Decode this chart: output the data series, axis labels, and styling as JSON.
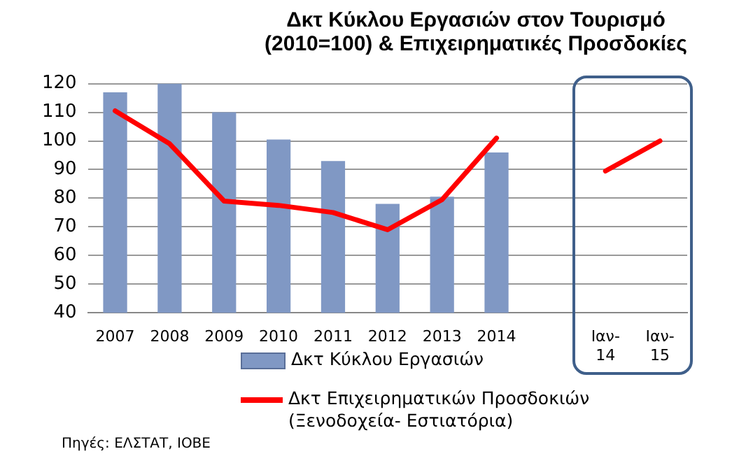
{
  "chart_data": {
    "type": "bar",
    "title": "Δκτ Κύκλου Εργασιών στον Τουρισμό\n(2010=100) & Επιχειρηματικές Προσδοκίες",
    "categories": [
      "2007",
      "2008",
      "2009",
      "2010",
      "2011",
      "2012",
      "2013",
      "2014",
      null,
      "Ιαν-14",
      "Ιαν-15"
    ],
    "series": [
      {
        "name": "Δκτ Κύκλου Εργασιών",
        "color": "#8098c4",
        "values": [
          117,
          120,
          110,
          100.5,
          93,
          78,
          80.5,
          96,
          null,
          null,
          null
        ]
      },
      {
        "name": "Δκτ Επιχειρηματικών Προσδοκιών\n(Ξενοδοχεία- Εστιατόρια)",
        "type": "line",
        "color": "#ff0000",
        "values": [
          110.5,
          99,
          79,
          77.5,
          75,
          69,
          79.5,
          101,
          null,
          89.5,
          100
        ]
      }
    ],
    "ylim": [
      40,
      120
    ],
    "yticks": [
      40,
      50,
      60,
      70,
      80,
      90,
      100,
      110,
      120
    ],
    "grid": "y",
    "legend": "bottom",
    "marker": "none",
    "annotations": [
      "Πηγές: ΕΛΣΤΑΤ, ΙΟΒΕ"
    ]
  }
}
